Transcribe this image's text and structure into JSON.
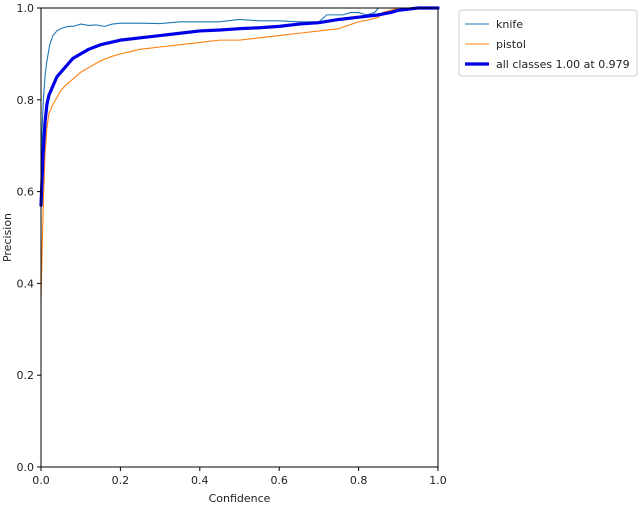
{
  "chart_data": {
    "type": "line",
    "title": "",
    "xlabel": "Confidence",
    "ylabel": "Precision",
    "xlim": [
      0,
      1
    ],
    "ylim": [
      0,
      1
    ],
    "x_ticks": [
      0.0,
      0.2,
      0.4,
      0.6,
      0.8,
      1.0
    ],
    "y_ticks": [
      0.0,
      0.2,
      0.4,
      0.6,
      0.8,
      1.0
    ],
    "x_tick_labels": [
      "0.0",
      "0.2",
      "0.4",
      "0.6",
      "0.8",
      "1.0"
    ],
    "y_tick_labels": [
      "0.0",
      "0.2",
      "0.4",
      "0.6",
      "0.8",
      "1.0"
    ],
    "grid": false,
    "legend_position": "outside-top-right",
    "series": [
      {
        "name": "knife",
        "color": "#1f77b4",
        "width": "thin",
        "x": [
          0.0,
          0.003,
          0.006,
          0.01,
          0.014,
          0.018,
          0.022,
          0.026,
          0.03,
          0.035,
          0.04,
          0.05,
          0.06,
          0.07,
          0.08,
          0.09,
          0.1,
          0.12,
          0.14,
          0.16,
          0.18,
          0.2,
          0.25,
          0.3,
          0.35,
          0.4,
          0.45,
          0.5,
          0.55,
          0.6,
          0.65,
          0.7,
          0.72,
          0.74,
          0.76,
          0.78,
          0.8,
          0.82,
          0.84,
          0.85,
          0.86,
          0.87,
          0.88,
          0.9,
          0.93,
          0.96,
          1.0
        ],
        "y": [
          0.64,
          0.74,
          0.8,
          0.85,
          0.88,
          0.9,
          0.92,
          0.93,
          0.94,
          0.945,
          0.95,
          0.955,
          0.958,
          0.96,
          0.96,
          0.962,
          0.965,
          0.962,
          0.963,
          0.96,
          0.965,
          0.967,
          0.967,
          0.966,
          0.97,
          0.97,
          0.97,
          0.975,
          0.972,
          0.972,
          0.97,
          0.97,
          0.985,
          0.985,
          0.985,
          0.99,
          0.99,
          0.985,
          0.99,
          1.0,
          1.0,
          1.0,
          1.0,
          1.0,
          1.0,
          1.0,
          1.0
        ]
      },
      {
        "name": "pistol",
        "color": "#ff7f0e",
        "width": "thin",
        "x": [
          0.0,
          0.003,
          0.006,
          0.01,
          0.015,
          0.02,
          0.03,
          0.04,
          0.05,
          0.06,
          0.08,
          0.1,
          0.12,
          0.15,
          0.18,
          0.2,
          0.25,
          0.3,
          0.35,
          0.4,
          0.45,
          0.5,
          0.55,
          0.6,
          0.65,
          0.7,
          0.75,
          0.8,
          0.83,
          0.85,
          0.86,
          0.88,
          0.9,
          0.95,
          1.0
        ],
        "y": [
          0.36,
          0.48,
          0.58,
          0.68,
          0.74,
          0.77,
          0.79,
          0.805,
          0.82,
          0.83,
          0.845,
          0.86,
          0.87,
          0.885,
          0.895,
          0.9,
          0.91,
          0.915,
          0.92,
          0.925,
          0.93,
          0.93,
          0.935,
          0.94,
          0.945,
          0.95,
          0.955,
          0.97,
          0.975,
          0.98,
          0.99,
          0.995,
          1.0,
          1.0,
          1.0
        ]
      },
      {
        "name": "all classes 1.00 at 0.979",
        "color": "#0000e6",
        "width": "thick",
        "x": [
          0.0,
          0.005,
          0.01,
          0.015,
          0.02,
          0.03,
          0.04,
          0.05,
          0.06,
          0.08,
          0.1,
          0.12,
          0.15,
          0.2,
          0.25,
          0.3,
          0.35,
          0.4,
          0.45,
          0.5,
          0.55,
          0.6,
          0.65,
          0.7,
          0.75,
          0.8,
          0.85,
          0.88,
          0.9,
          0.95,
          1.0
        ],
        "y": [
          0.57,
          0.68,
          0.75,
          0.79,
          0.81,
          0.83,
          0.85,
          0.86,
          0.87,
          0.89,
          0.9,
          0.91,
          0.92,
          0.93,
          0.935,
          0.94,
          0.945,
          0.95,
          0.952,
          0.955,
          0.957,
          0.96,
          0.965,
          0.968,
          0.975,
          0.98,
          0.985,
          0.99,
          0.995,
          1.0,
          1.0
        ]
      }
    ]
  }
}
